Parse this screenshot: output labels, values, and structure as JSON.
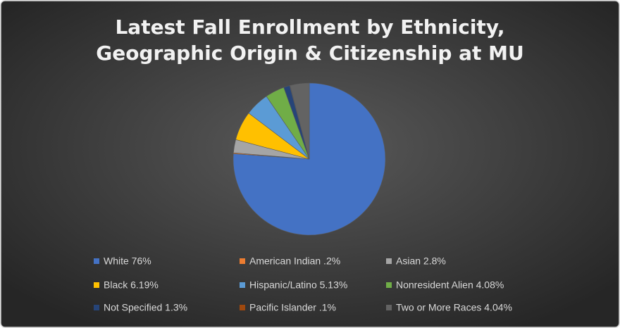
{
  "chart_data": {
    "type": "pie",
    "title": [
      "Latest Fall Enrollment by Ethnicity,",
      "Geographic Origin & Citizenship at MU"
    ],
    "categories": [
      "White 76%",
      "American Indian .2%",
      "Asian 2.8%",
      "Black 6.19%",
      "Hispanic/Latino 5.13%",
      "Nonresident Alien 4.08%",
      "Not Specified 1.3%",
      "Pacific Islander .1%",
      "Two or More Races 4.04%"
    ],
    "values": [
      76,
      0.2,
      2.8,
      6.19,
      5.13,
      4.08,
      1.3,
      0.1,
      4.04
    ],
    "colors": [
      "#4472c4",
      "#ed7d31",
      "#a5a5a5",
      "#ffc000",
      "#5b9bd5",
      "#70ad47",
      "#264478",
      "#9e480e",
      "#636363"
    ],
    "legend": "bottom"
  }
}
